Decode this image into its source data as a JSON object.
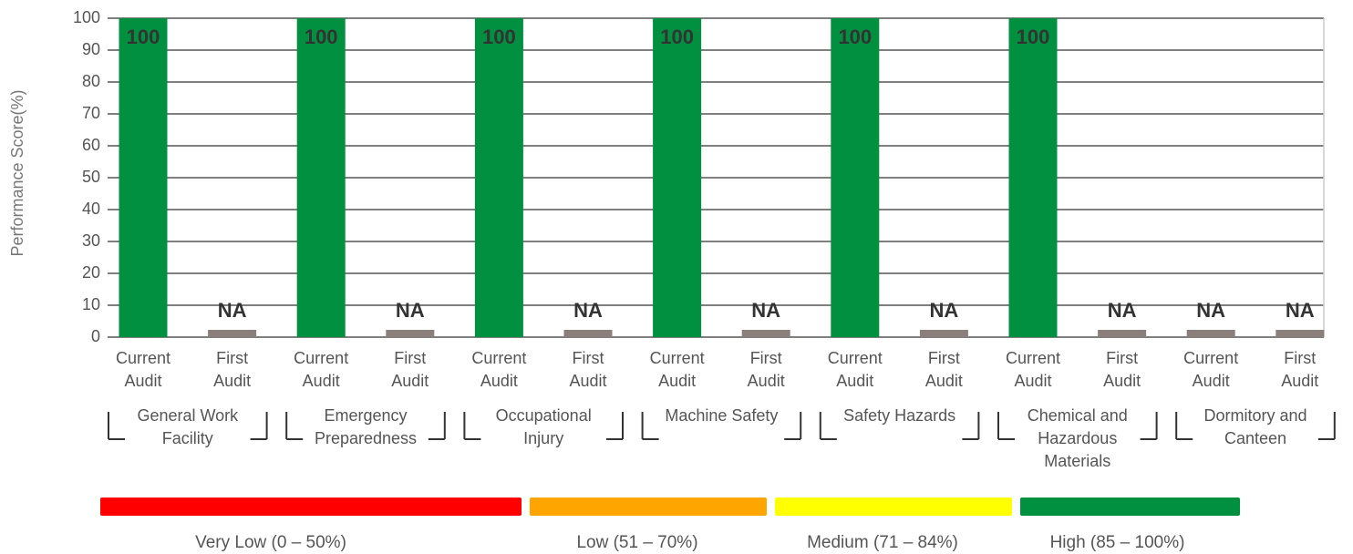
{
  "chart_data": {
    "type": "bar",
    "y_label": "Performance Score(%)",
    "ylim": [
      0,
      100
    ],
    "yticks": [
      0,
      10,
      20,
      30,
      40,
      50,
      60,
      70,
      80,
      90,
      100
    ],
    "grid": true,
    "categories": [
      "Current Audit",
      "First Audit",
      "Current Audit",
      "First Audit",
      "Current Audit",
      "First Audit",
      "Current Audit",
      "First Audit",
      "Current Audit",
      "First Audit",
      "Current Audit",
      "First Audit",
      "Current Audit",
      "First Audit"
    ],
    "groups": [
      "General Work Facility",
      "Emergency Preparedness",
      "Occupational Injury",
      "Machine Safety",
      "Safety Hazards",
      "Chemical and Hazardous Materials",
      "Dormitory and Canteen"
    ],
    "series": [
      {
        "color": "#009040",
        "na_color": "#8a7f7a",
        "values": [
          100,
          null,
          100,
          null,
          100,
          null,
          100,
          null,
          100,
          null,
          100,
          null,
          null,
          null
        ],
        "value_labels": [
          "100",
          "NA",
          "100",
          "NA",
          "100",
          "NA",
          "100",
          "NA",
          "100",
          "NA",
          "100",
          "NA",
          "NA",
          "NA"
        ]
      }
    ],
    "bands": [
      {
        "label": "Very Low (0 – 50%)",
        "color": "#ff0000"
      },
      {
        "label": "Low (51 – 70%)",
        "color": "#ffa500"
      },
      {
        "label": "Medium (71 – 84%)",
        "color": "#ffff00"
      },
      {
        "label": "High (85 – 100%)",
        "color": "#009040"
      }
    ]
  }
}
